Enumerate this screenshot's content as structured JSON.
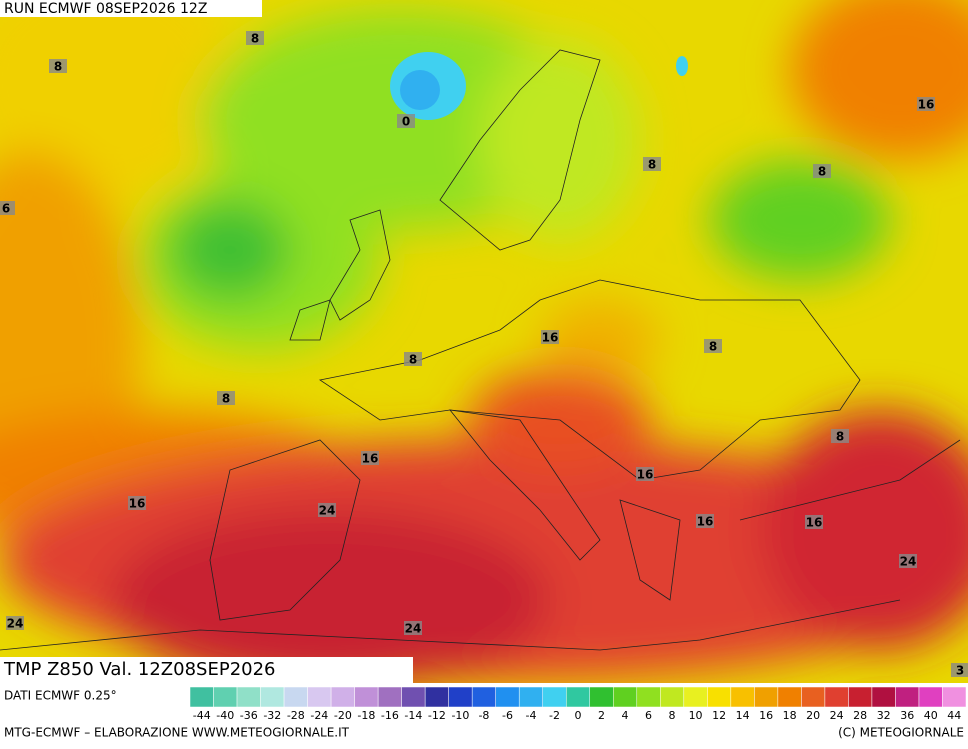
{
  "header": {
    "run": "RUN ECMWF 08SEP2026 12Z"
  },
  "title": "TMP Z850 Val. 12Z08SEP2026",
  "map": {
    "contour_labels": [
      8,
      8,
      0,
      16,
      8,
      8,
      6,
      16,
      8,
      8,
      8,
      16,
      8,
      16,
      16,
      24,
      16,
      16,
      24,
      24,
      24,
      3
    ]
  },
  "colorbar": {
    "source": "DATI ECMWF 0.25°",
    "labels": [
      -44,
      -40,
      -36,
      -32,
      -28,
      -24,
      -20,
      -18,
      -16,
      -14,
      -12,
      -10,
      -8,
      -6,
      -4,
      -2,
      0,
      2,
      4,
      6,
      8,
      10,
      12,
      14,
      16,
      18,
      20,
      24,
      28,
      32,
      36,
      40,
      44
    ],
    "colors": [
      "#40c0a0",
      "#60d0b0",
      "#90e0c8",
      "#b0e8e0",
      "#c8d8f0",
      "#d8c8f0",
      "#d0b0e8",
      "#c090d8",
      "#a070c0",
      "#7050b0",
      "#3030a0",
      "#2040c8",
      "#2060e0",
      "#2090f0",
      "#30b0f0",
      "#40d0f0",
      "#30c8a0",
      "#30c030",
      "#60d020",
      "#90e020",
      "#c0e820",
      "#e8f020",
      "#f8e000",
      "#f8c000",
      "#f0a000",
      "#f08000",
      "#e86020",
      "#e04030",
      "#c82030",
      "#b01040",
      "#c02080",
      "#e040c0",
      "#f090e0"
    ]
  },
  "footer": {
    "left": "MTG-ECMWF – ELABORAZIONE WWW.METEOGIORNALE.IT",
    "right": "(C) METEOGIORNALE"
  }
}
